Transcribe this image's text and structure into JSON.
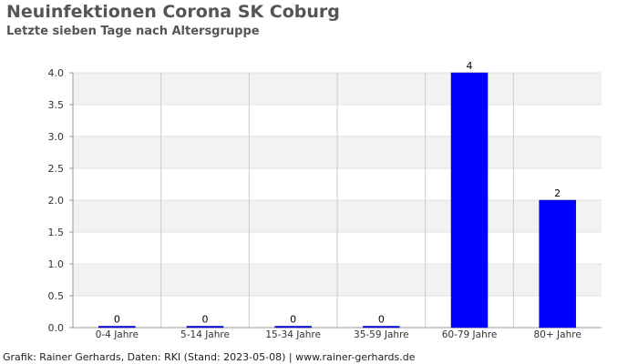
{
  "header": {
    "title": "Neuinfektionen Corona SK Coburg",
    "subtitle": "Letzte sieben Tage nach Altersgruppe"
  },
  "footer": {
    "credit": "Grafik: Rainer Gerhards, Daten: RKI (Stand: 2023-05-08) | www.rainer-gerhards.de"
  },
  "chart_data": {
    "type": "bar",
    "categories": [
      "0-4 Jahre",
      "5-14 Jahre",
      "15-34 Jahre",
      "35-59 Jahre",
      "60-79 Jahre",
      "80+ Jahre"
    ],
    "values": [
      0,
      0,
      0,
      0,
      4,
      2
    ],
    "data_labels": [
      "0",
      "0",
      "0",
      "0",
      "4",
      "2"
    ],
    "ylim": [
      0,
      4
    ],
    "yticks": [
      "0.0",
      "0.5",
      "1.0",
      "1.5",
      "2.0",
      "2.5",
      "3.0",
      "3.5",
      "4.0"
    ],
    "xlabel": "",
    "ylabel": "",
    "grid": true,
    "legend": "none",
    "colors": {
      "bar": "#0000ff",
      "band": "#f2f2f2",
      "grid": "#cccccc"
    }
  }
}
